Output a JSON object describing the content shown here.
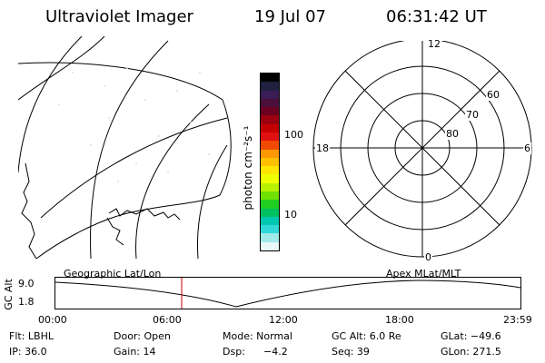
{
  "header": {
    "instrument": "Ultraviolet Imager",
    "date": "19 Jul 07",
    "time": "06:31:42 UT"
  },
  "colorbar": {
    "unit_label": "photon cm⁻²s⁻¹",
    "ticks": [
      "100",
      "10"
    ],
    "colors": [
      "#000000",
      "#202040",
      "#3a1d55",
      "#4b0f3a",
      "#6b0020",
      "#9c0010",
      "#c40000",
      "#e01010",
      "#f24a00",
      "#ff9800",
      "#ffc000",
      "#ffe600",
      "#f0ff00",
      "#b8f000",
      "#70e000",
      "#20d020",
      "#00c060",
      "#00c8b0",
      "#30d8d8",
      "#a0eaea",
      "#e8f8f8"
    ]
  },
  "polar": {
    "mlt_labels": {
      "top": "12",
      "left": "18",
      "right": "6",
      "bottom": "0"
    },
    "lat_labels": [
      "60",
      "70",
      "80"
    ]
  },
  "timeline": {
    "left_label": "Geographic Lat/Lon",
    "right_label": "Apex MLat/MLT",
    "y_axis_label": "GC Alt",
    "y_ticks": [
      "9.0",
      "1.8"
    ],
    "x_ticks": [
      "00:00",
      "06:00",
      "12:00",
      "18:00",
      "23:59"
    ],
    "current_time_marker_color": "#cc0000"
  },
  "status": {
    "filter": "Flt: LBHL",
    "door": "Door: Open",
    "mode": "Mode: Normal",
    "gc_alt": "GC Alt: 6.0 Re",
    "glat": "GLat: −49.6",
    "ip": "IP: 36.0",
    "gain": "Gain: 14",
    "dsp_label": "Dsp:",
    "dsp_value": "−4.2",
    "seq": "Seq: 39",
    "glon": "GLon: 271.5"
  }
}
